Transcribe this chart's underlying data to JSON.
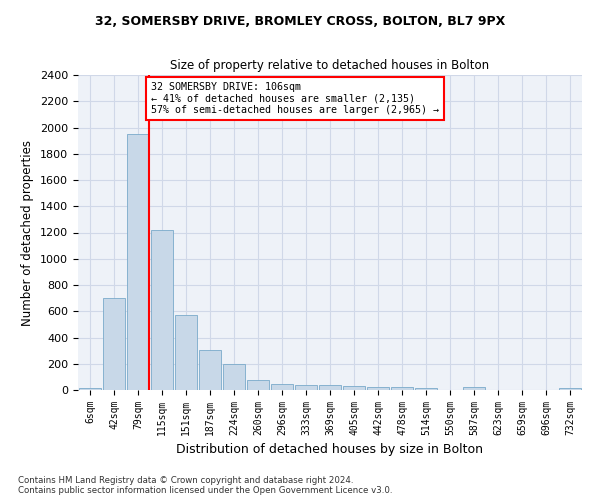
{
  "title1": "32, SOMERSBY DRIVE, BROMLEY CROSS, BOLTON, BL7 9PX",
  "title2": "Size of property relative to detached houses in Bolton",
  "xlabel": "Distribution of detached houses by size in Bolton",
  "ylabel": "Number of detached properties",
  "bar_color": "#c8d8e8",
  "bar_edge_color": "#7aaaca",
  "bin_labels": [
    "6sqm",
    "42sqm",
    "79sqm",
    "115sqm",
    "151sqm",
    "187sqm",
    "224sqm",
    "260sqm",
    "296sqm",
    "333sqm",
    "369sqm",
    "405sqm",
    "442sqm",
    "478sqm",
    "514sqm",
    "550sqm",
    "587sqm",
    "623sqm",
    "659sqm",
    "696sqm",
    "732sqm"
  ],
  "bar_values": [
    15,
    700,
    1950,
    1220,
    570,
    305,
    200,
    80,
    45,
    38,
    38,
    30,
    22,
    22,
    15,
    0,
    20,
    0,
    0,
    0,
    18
  ],
  "ylim": [
    0,
    2400
  ],
  "yticks": [
    0,
    200,
    400,
    600,
    800,
    1000,
    1200,
    1400,
    1600,
    1800,
    2000,
    2200,
    2400
  ],
  "property_line_x": 2.47,
  "annotation_line1": "32 SOMERSBY DRIVE: 106sqm",
  "annotation_line2": "← 41% of detached houses are smaller (2,135)",
  "annotation_line3": "57% of semi-detached houses are larger (2,965) →",
  "footer_text": "Contains HM Land Registry data © Crown copyright and database right 2024.\nContains public sector information licensed under the Open Government Licence v3.0.",
  "grid_color": "#d0d8e8",
  "background_color": "#eef2f8"
}
